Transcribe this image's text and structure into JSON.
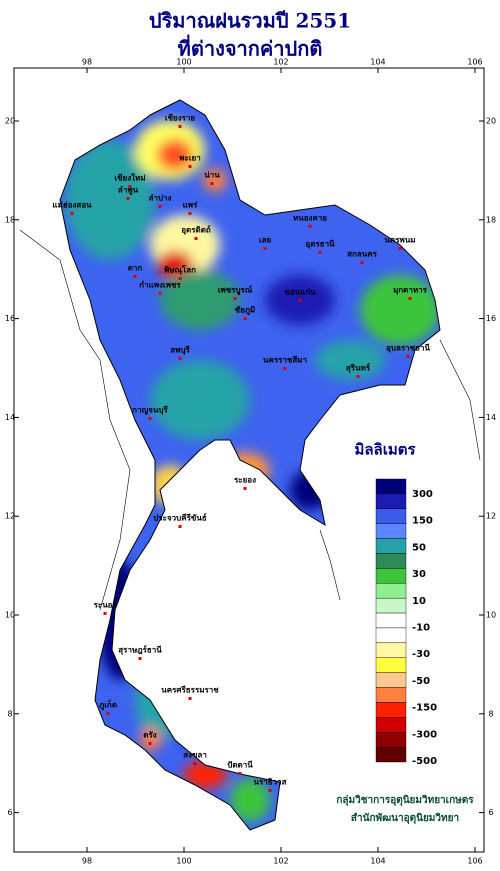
{
  "title": [
    "ปริมาณฝนรวมปี 2551",
    "ที่ต่างจากค่าปกติ"
  ],
  "map": {
    "xticks": [
      98,
      100,
      102,
      104,
      106
    ],
    "yticks": [
      20,
      18,
      16,
      14,
      12,
      10,
      8,
      6
    ],
    "provinces": [
      "เชียงราย",
      "แม่ฮ่องสอน",
      "เชียงใหม่",
      "ลำพูน",
      "พะเยา",
      "น่าน",
      "ลำปาง",
      "แพร่",
      "ตาก",
      "อุตรดิตถ์",
      "พิษณุโลก",
      "กำแพงเพชร",
      "เพชรบูรณ์",
      "หนองคาย",
      "เลย",
      "อุดรธานี",
      "สกลนคร",
      "นครพนม",
      "มุกดาหาร",
      "ขอนแก่น",
      "ชัยภูมิ",
      "นครราชสีมา",
      "อุบลราชธานี",
      "สุรินทร์",
      "ลพบุรี",
      "กาญจนบุรี",
      "ระยอง",
      "ประจวบคีรีขันธ์",
      "ระนอง",
      "สุราษฎร์ธานี",
      "นครศรีธรรมราช",
      "ภูเก็ต",
      "ตรัง",
      "สงขลา",
      "ปัตตานี",
      "นราธิวาส"
    ]
  },
  "legend": {
    "title": "มิลลิเมตร",
    "labels": [
      300,
      150,
      50,
      30,
      10,
      -10,
      -30,
      -50,
      -150,
      -300,
      -500
    ],
    "colors": [
      "#00007a",
      "#1c1cb4",
      "#3b5be8",
      "#5a86ff",
      "#25a3a8",
      "#2e8b57",
      "#3cc43c",
      "#8ff08f",
      "#c8f8c8",
      "#ffffff",
      "#ffffff",
      "#fff8a0",
      "#ffff40",
      "#ffc890",
      "#ff8040",
      "#ff2000",
      "#d00000",
      "#900000",
      "#600000"
    ]
  },
  "credit": [
    "กลุ่มวิชาการอุตุนิยมวิทยาเกษตร",
    "สำนักพัฒนาอุตุนิยมวิทยา"
  ]
}
